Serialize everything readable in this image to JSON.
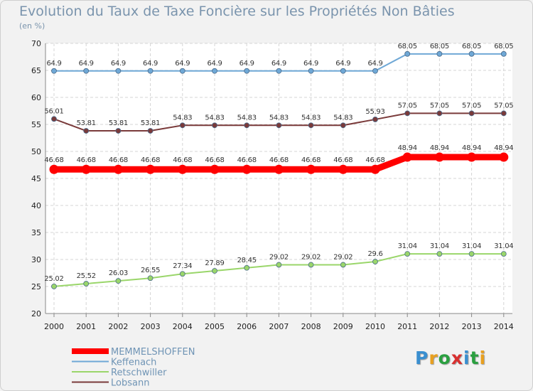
{
  "header": {
    "title": "Evolution du Taux de Taxe Foncière sur les Propriétés Non Bâties",
    "unit": "(en %)"
  },
  "logo": {
    "text": "Proxiti",
    "colors": [
      "#3a8fd0",
      "#e8a020",
      "#2aa040",
      "#d83030",
      "#3a8fd0",
      "#2aa040",
      "#e8a020"
    ]
  },
  "chart_data": {
    "type": "line",
    "x": [
      "2000",
      "2001",
      "2002",
      "2003",
      "2004",
      "2005",
      "2006",
      "2007",
      "2008",
      "2009",
      "2010",
      "2011",
      "2012",
      "2013",
      "2014"
    ],
    "ylim": [
      20,
      70
    ],
    "yticks": [
      "20",
      "25",
      "30",
      "35",
      "40",
      "45",
      "50",
      "55",
      "60",
      "65",
      "70"
    ],
    "grid": true,
    "legend_position": "bottom-left",
    "series": [
      {
        "name": "MEMMELSHOFFEN",
        "color": "#ff0000",
        "values": [
          46.68,
          46.68,
          46.68,
          46.68,
          46.68,
          46.68,
          46.68,
          46.68,
          46.68,
          46.68,
          46.68,
          48.94,
          48.94,
          48.94,
          48.94
        ],
        "labels": [
          "46.68",
          "46.68",
          "46.68",
          "46.68",
          "46.68",
          "46.68",
          "46.68",
          "46.68",
          "46.68",
          "46.68",
          "46.68",
          "48.94",
          "48.94",
          "48.94",
          "48.94"
        ]
      },
      {
        "name": "Keffenach",
        "color": "#6fa8d6",
        "values": [
          64.9,
          64.9,
          64.9,
          64.9,
          64.9,
          64.9,
          64.9,
          64.9,
          64.9,
          64.9,
          64.9,
          68.05,
          68.05,
          68.05,
          68.05
        ],
        "labels": [
          "64.9",
          "64.9",
          "64.9",
          "64.9",
          "64.9",
          "64.9",
          "64.9",
          "64.9",
          "64.9",
          "64.9",
          "64.9",
          "68.05",
          "68.05",
          "68.05",
          "68.05"
        ]
      },
      {
        "name": "Retschwiller",
        "color": "#9ad66a",
        "values": [
          25.02,
          25.52,
          26.03,
          26.55,
          27.34,
          27.89,
          28.45,
          29.02,
          29.02,
          29.02,
          29.6,
          31.04,
          31.04,
          31.04,
          31.04
        ],
        "labels": [
          "25.02",
          "25.52",
          "26.03",
          "26.55",
          "27.34",
          "27.89",
          "28.45",
          "29.02",
          "29.02",
          "29.02",
          "29.6",
          "31.04",
          "31.04",
          "31.04",
          "31.04"
        ]
      },
      {
        "name": "Lobsann",
        "color": "#7a3a3a",
        "values": [
          56.01,
          53.81,
          53.81,
          53.81,
          54.83,
          54.83,
          54.83,
          54.83,
          54.83,
          54.83,
          55.93,
          57.05,
          57.05,
          57.05,
          57.05
        ],
        "labels": [
          "56.01",
          "53.81",
          "53.81",
          "53.81",
          "54.83",
          "54.83",
          "54.83",
          "54.83",
          "54.83",
          "54.83",
          "55.93",
          "57.05",
          "57.05",
          "57.05",
          "57.05"
        ]
      }
    ]
  }
}
